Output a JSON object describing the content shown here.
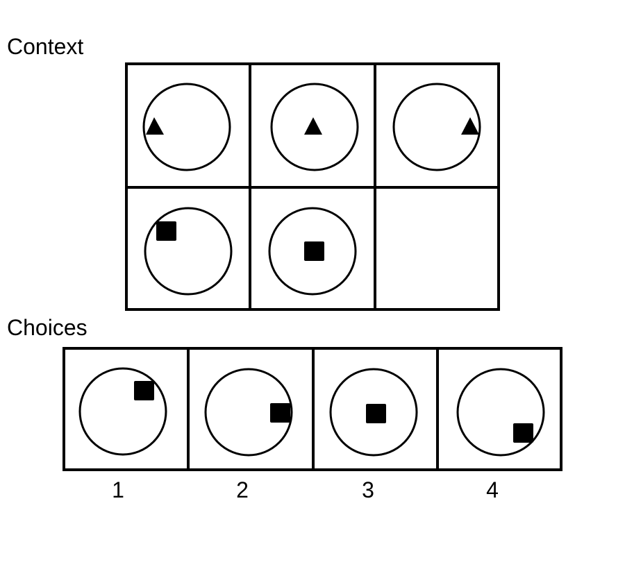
{
  "headings": {
    "context": "Context",
    "choices": "Choices"
  },
  "choice_numbers": [
    "1",
    "2",
    "3",
    "4"
  ],
  "colors": {
    "stroke": "#000000",
    "fill": "#000000",
    "background": "#ffffff"
  },
  "context_grid": {
    "rows": 2,
    "cols": 3,
    "cells": [
      {
        "shape": "triangle-icon",
        "position": "left edge"
      },
      {
        "shape": "triangle-icon",
        "position": "center"
      },
      {
        "shape": "triangle-icon",
        "position": "right edge"
      },
      {
        "shape": "square-icon",
        "position": "upper-left edge"
      },
      {
        "shape": "square-icon",
        "position": "center"
      },
      {
        "shape": "empty",
        "position": "missing"
      }
    ]
  },
  "choices": [
    {
      "shape": "square-icon",
      "position": "upper-right edge"
    },
    {
      "shape": "square-icon",
      "position": "right edge"
    },
    {
      "shape": "square-icon",
      "position": "center"
    },
    {
      "shape": "square-icon",
      "position": "lower-right edge"
    }
  ]
}
